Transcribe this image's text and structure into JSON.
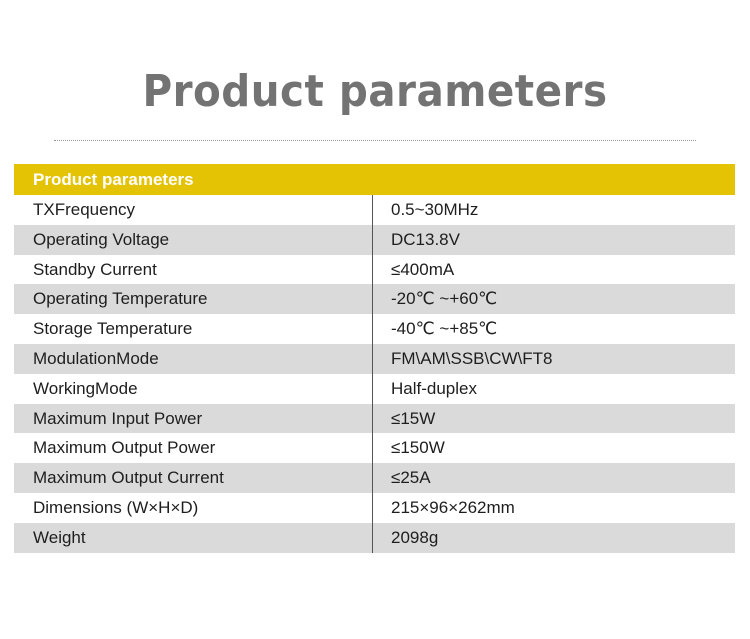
{
  "page_title": "Product parameters",
  "table": {
    "header": "Product parameters",
    "header_color": "#e3c304",
    "rows": [
      {
        "label": "TXFrequency",
        "value": "0.5~30MHz"
      },
      {
        "label": "Operating Voltage",
        "value": "DC13.8V"
      },
      {
        "label": "Standby Current",
        "value": "≤400mA"
      },
      {
        "label": "Operating Temperature",
        "value": "-20℃  ~+60℃"
      },
      {
        "label": "Storage Temperature",
        "value": "-40℃  ~+85℃"
      },
      {
        "label": "ModulationMode",
        "value": "FM\\AM\\SSB\\CW\\FT8"
      },
      {
        "label": "WorkingMode",
        "value": "Half-duplex"
      },
      {
        "label": "Maximum Input Power",
        "value": "≤15W"
      },
      {
        "label": "Maximum Output Power",
        "value": "≤150W"
      },
      {
        "label": "Maximum Output Current",
        "value": "≤25A"
      },
      {
        "label": "Dimensions (W×H×D)",
        "value": "215×96×262mm"
      },
      {
        "label": "Weight",
        "value": "2098g"
      }
    ]
  }
}
